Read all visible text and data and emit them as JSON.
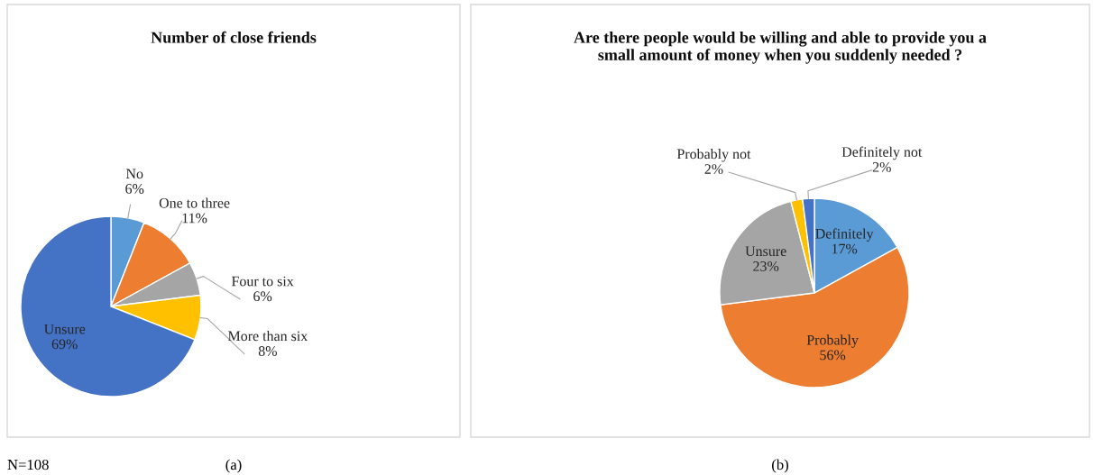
{
  "chart_data": [
    {
      "type": "pie",
      "title": "Number of close friends",
      "categories": [
        "No",
        "One to three",
        "Four to six",
        "More than six",
        "Unsure"
      ],
      "values": [
        6,
        11,
        6,
        8,
        69
      ],
      "value_labels": [
        "6%",
        "11%",
        "6%",
        "8%",
        "69%"
      ],
      "colors": [
        "#5b9bd5",
        "#ed7d31",
        "#a5a5a5",
        "#ffc000",
        "#4472c4"
      ],
      "legend": false,
      "annotations": [
        "N=108",
        "(a)"
      ]
    },
    {
      "type": "pie",
      "title": "Are there people would be willing and able to provide you a small amount of money when you suddenly needed ?",
      "categories": [
        "Definitely",
        "Probably",
        "Unsure",
        "Probably not",
        "Definitely not"
      ],
      "values": [
        17,
        56,
        23,
        2,
        2
      ],
      "value_labels": [
        "17%",
        "56%",
        "23%",
        "2%",
        "2%"
      ],
      "colors": [
        "#5b9bd5",
        "#ed7d31",
        "#a5a5a5",
        "#ffc000",
        "#4472c4"
      ],
      "legend": false,
      "annotations": [
        "(b)"
      ]
    }
  ]
}
